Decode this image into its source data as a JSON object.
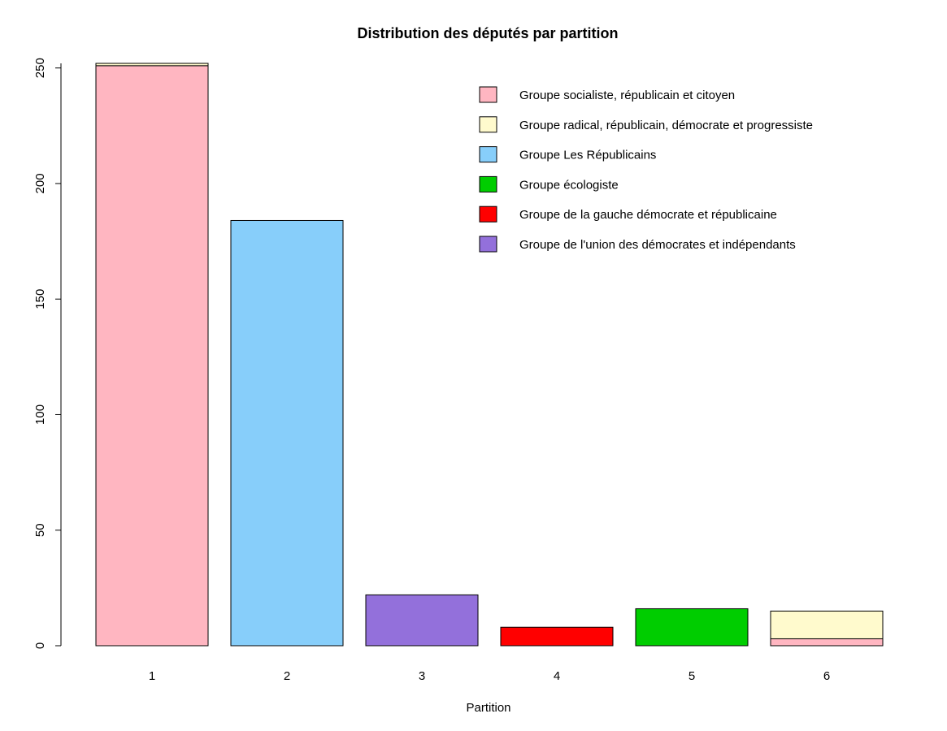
{
  "chart_data": {
    "type": "bar",
    "stacked": true,
    "title": "Distribution des députés par partition",
    "xlabel": "Partition",
    "ylabel": "",
    "categories": [
      "1",
      "2",
      "3",
      "4",
      "5",
      "6"
    ],
    "ylim": [
      0,
      252
    ],
    "yticks": [
      0,
      50,
      100,
      150,
      200,
      250
    ],
    "grid": false,
    "legend_position": "top-right",
    "series": [
      {
        "name": "Groupe socialiste, républicain et citoyen",
        "color": "#FFB6C1",
        "values": [
          251,
          0,
          0,
          0,
          0,
          3
        ]
      },
      {
        "name": "Groupe radical, républicain, démocrate et progressiste",
        "color": "#FFFACD",
        "values": [
          1,
          0,
          0,
          0,
          0,
          12
        ]
      },
      {
        "name": "Groupe Les Républicains",
        "color": "#87CEFA",
        "values": [
          0,
          184,
          0,
          0,
          0,
          0
        ]
      },
      {
        "name": "Groupe écologiste",
        "color": "#00CD00",
        "values": [
          0,
          0,
          0,
          0,
          16,
          0
        ]
      },
      {
        "name": "Groupe de la gauche démocrate et républicaine",
        "color": "#FF0000",
        "values": [
          0,
          0,
          0,
          8,
          0,
          0
        ]
      },
      {
        "name": "Groupe de l'union des démocrates et indépendants",
        "color": "#9370DB",
        "values": [
          0,
          0,
          22,
          0,
          0,
          0
        ]
      }
    ]
  }
}
